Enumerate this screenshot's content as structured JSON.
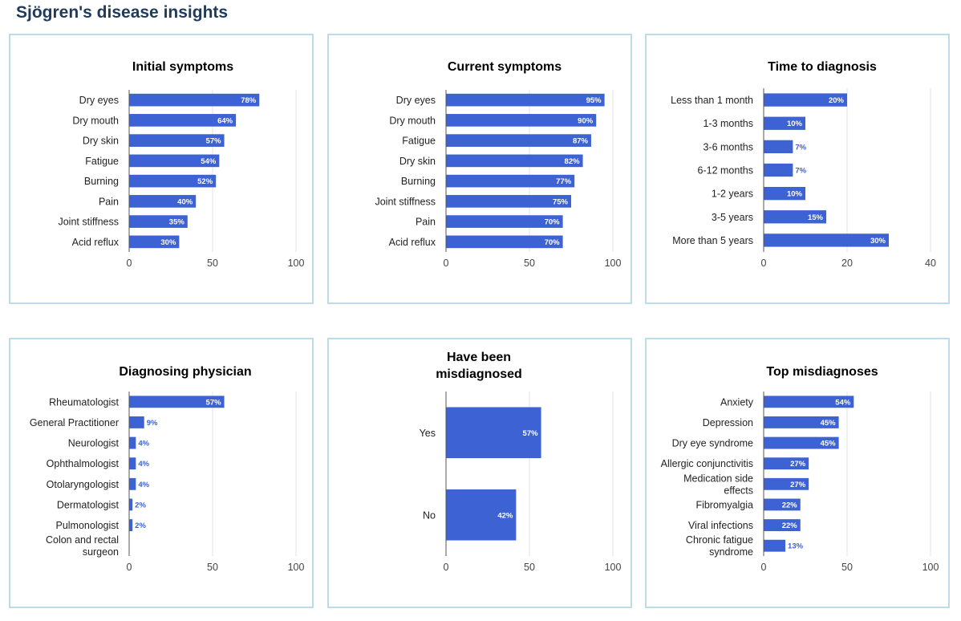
{
  "page": {
    "title": "Sjögren's disease insights"
  },
  "colors": {
    "bar": "#3d62d3",
    "label_inside": "#ffffff",
    "label_outside": "#3d62d3",
    "panel_border": "#bcdce8",
    "title": "#1f3a5a"
  },
  "chart_data": [
    {
      "type": "bar",
      "orientation": "horizontal",
      "title": [
        "Initial symptoms"
      ],
      "categories": [
        [
          "Dry eyes"
        ],
        [
          "Dry mouth"
        ],
        [
          "Dry skin"
        ],
        [
          "Fatigue"
        ],
        [
          "Burning"
        ],
        [
          "Pain"
        ],
        [
          "Joint stiffness"
        ],
        [
          "Acid reflux"
        ]
      ],
      "values": [
        78,
        64,
        57,
        54,
        52,
        40,
        35,
        30
      ],
      "value_labels": [
        "78%",
        "64%",
        "57%",
        "54%",
        "52%",
        "40%",
        "35%",
        "30%"
      ],
      "xlim": [
        0,
        100
      ],
      "xticks": [
        0,
        50,
        100
      ],
      "xlabel": "",
      "ylabel": "",
      "grid": true
    },
    {
      "type": "bar",
      "orientation": "horizontal",
      "title": [
        "Current symptoms"
      ],
      "categories": [
        [
          "Dry eyes"
        ],
        [
          "Dry mouth"
        ],
        [
          "Fatigue"
        ],
        [
          "Dry skin"
        ],
        [
          "Burning"
        ],
        [
          "Joint stiffness"
        ],
        [
          "Pain"
        ],
        [
          "Acid reflux"
        ]
      ],
      "values": [
        95,
        90,
        87,
        82,
        77,
        75,
        70,
        70
      ],
      "value_labels": [
        "95%",
        "90%",
        "87%",
        "82%",
        "77%",
        "75%",
        "70%",
        "70%"
      ],
      "xlim": [
        0,
        100
      ],
      "xticks": [
        0,
        50,
        100
      ],
      "xlabel": "",
      "ylabel": "",
      "grid": true
    },
    {
      "type": "bar",
      "orientation": "horizontal",
      "title": [
        "Time to diagnosis"
      ],
      "categories": [
        [
          "Less than 1 month"
        ],
        [
          "1-3 months"
        ],
        [
          "3-6 months"
        ],
        [
          "6-12 months"
        ],
        [
          "1-2 years"
        ],
        [
          "3-5 years"
        ],
        [
          "More than 5 years"
        ]
      ],
      "values": [
        20,
        10,
        7,
        7,
        10,
        15,
        30
      ],
      "value_labels": [
        "20%",
        "10%",
        "7%",
        "7%",
        "10%",
        "15%",
        "30%"
      ],
      "xlim": [
        0,
        40
      ],
      "xticks": [
        0,
        20,
        40
      ],
      "xlabel": "",
      "ylabel": "",
      "grid": true
    },
    {
      "type": "bar",
      "orientation": "horizontal",
      "title": [
        "Diagnosing physician"
      ],
      "categories": [
        [
          "Rheumatologist"
        ],
        [
          "General Practitioner"
        ],
        [
          "Neurologist"
        ],
        [
          "Ophthalmologist"
        ],
        [
          "Otolaryngologist"
        ],
        [
          "Dermatologist"
        ],
        [
          "Pulmonologist"
        ],
        [
          "Colon and rectal",
          "surgeon"
        ]
      ],
      "values": [
        57,
        9,
        4,
        4,
        4,
        2,
        2,
        0
      ],
      "value_labels": [
        "57%",
        "9%",
        "4%",
        "4%",
        "4%",
        "2%",
        "2%",
        ""
      ],
      "xlim": [
        0,
        100
      ],
      "xticks": [
        0,
        50,
        100
      ],
      "xlabel": "",
      "ylabel": "",
      "grid": true
    },
    {
      "type": "bar",
      "orientation": "horizontal",
      "title": [
        "Have been",
        "misdiagnosed"
      ],
      "categories": [
        [
          "Yes"
        ],
        [
          "No"
        ]
      ],
      "values": [
        57,
        42
      ],
      "value_labels": [
        "57%",
        "42%"
      ],
      "xlim": [
        0,
        100
      ],
      "xticks": [
        0,
        50,
        100
      ],
      "xlabel": "",
      "ylabel": "",
      "grid": true
    },
    {
      "type": "bar",
      "orientation": "horizontal",
      "title": [
        "Top misdiagnoses"
      ],
      "categories": [
        [
          "Anxiety"
        ],
        [
          "Depression"
        ],
        [
          "Dry eye syndrome"
        ],
        [
          "Allergic conjunctivitis"
        ],
        [
          "Medication side",
          "effects"
        ],
        [
          "Fibromyalgia"
        ],
        [
          "Viral infections"
        ],
        [
          "Chronic fatigue",
          "syndrome"
        ]
      ],
      "values": [
        54,
        45,
        45,
        27,
        27,
        22,
        22,
        13
      ],
      "value_labels": [
        "54%",
        "45%",
        "45%",
        "27%",
        "27%",
        "22%",
        "22%",
        "13%"
      ],
      "xlim": [
        0,
        100
      ],
      "xticks": [
        0,
        50,
        100
      ],
      "xlabel": "",
      "ylabel": "",
      "grid": true
    }
  ]
}
